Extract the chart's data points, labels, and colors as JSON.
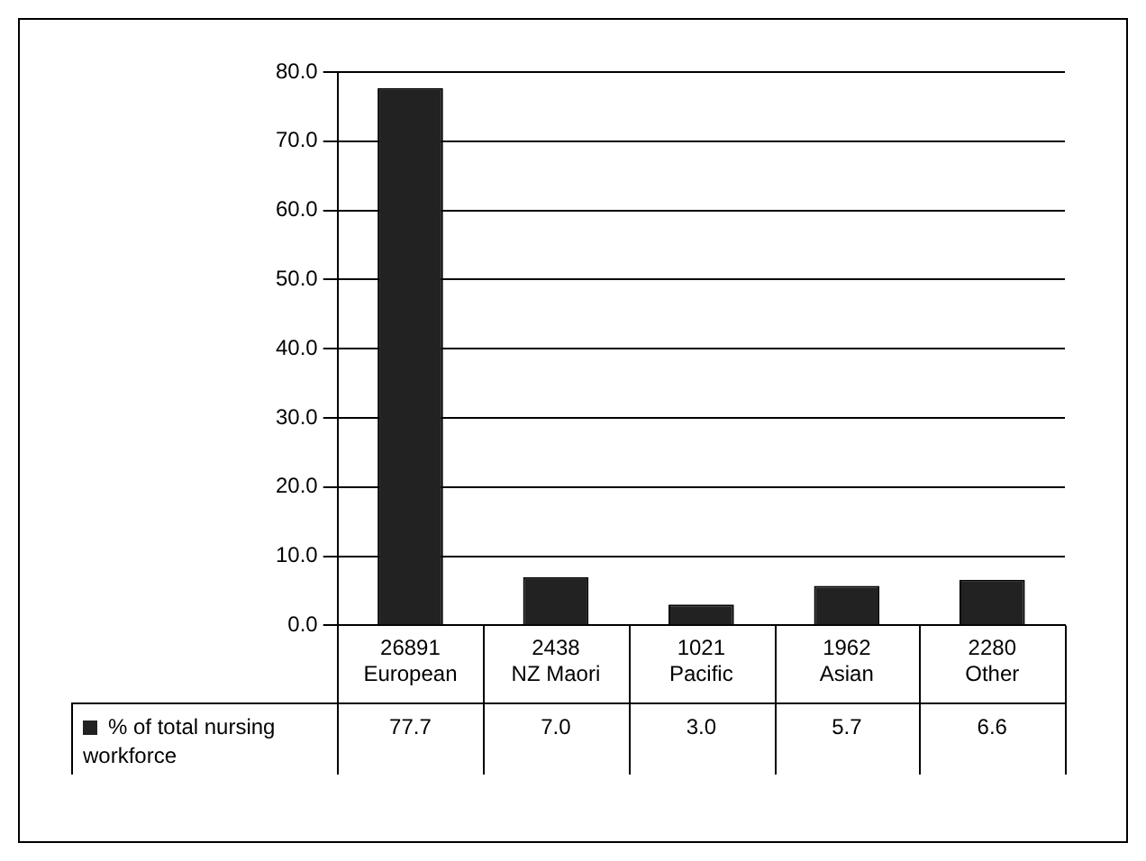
{
  "chart_data": {
    "type": "bar",
    "categories": [
      "26891\nEuropean",
      "2438\nNZ Maori",
      "1021\nPacific",
      "1962\nAsian",
      "2280\nOther"
    ],
    "series": [
      {
        "name": "% of total nursing workforce",
        "color": "#222222",
        "values": [
          77.7,
          7.0,
          3.0,
          5.7,
          6.6
        ],
        "value_labels": [
          "77.7",
          "7.0",
          "3.0",
          "5.7",
          "6.6"
        ]
      }
    ],
    "ylim": [
      0,
      80
    ],
    "yticks": [
      {
        "value": 0,
        "label": "0.0"
      },
      {
        "value": 10,
        "label": "10.0"
      },
      {
        "value": 20,
        "label": "20.0"
      },
      {
        "value": 30,
        "label": "30.0"
      },
      {
        "value": 40,
        "label": "40.0"
      },
      {
        "value": 50,
        "label": "50.0"
      },
      {
        "value": 60,
        "label": "60.0"
      },
      {
        "value": 70,
        "label": "70.0"
      },
      {
        "value": 80,
        "label": "80.0"
      }
    ],
    "grid": "y",
    "legend": "bottom left"
  }
}
